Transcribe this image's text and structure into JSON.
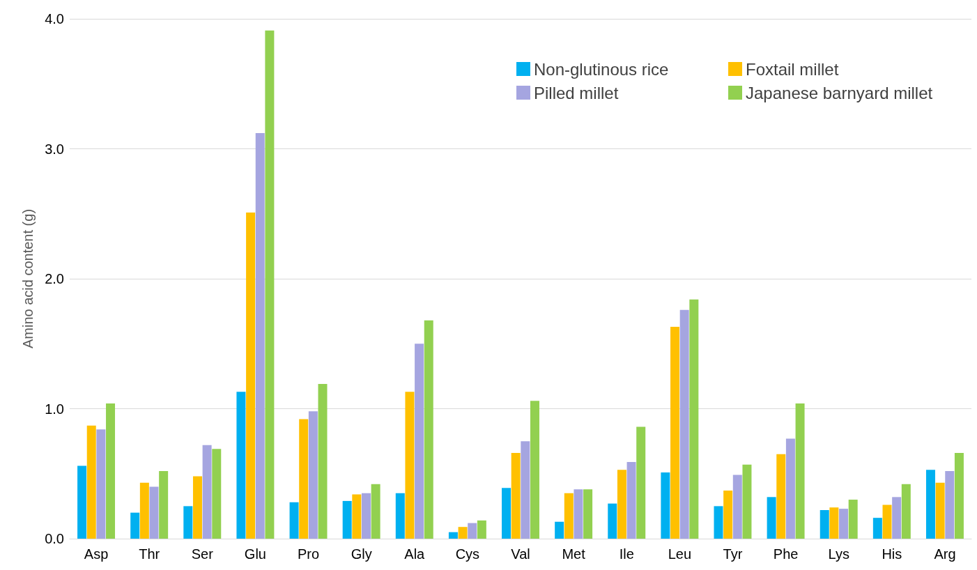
{
  "chart_data": {
    "type": "bar",
    "ylabel": "Amino acid content (g)",
    "categories": [
      "Asp",
      "Thr",
      "Ser",
      "Glu",
      "Pro",
      "Gly",
      "Ala",
      "Cys",
      "Val",
      "Met",
      "Ile",
      "Leu",
      "Tyr",
      "Phe",
      "Lys",
      "His",
      "Arg"
    ],
    "series": [
      {
        "name": "Non-glutinous rice",
        "color": "#00b0f0",
        "values": [
          0.56,
          0.2,
          0.25,
          1.13,
          0.28,
          0.29,
          0.35,
          0.05,
          0.39,
          0.13,
          0.27,
          0.51,
          0.25,
          0.32,
          0.22,
          0.16,
          0.53
        ]
      },
      {
        "name": "Foxtail millet",
        "color": "#ffc000",
        "values": [
          0.87,
          0.43,
          0.48,
          2.51,
          0.92,
          0.34,
          1.13,
          0.09,
          0.66,
          0.35,
          0.53,
          1.63,
          0.37,
          0.65,
          0.24,
          0.26,
          0.43
        ]
      },
      {
        "name": "Pilled millet",
        "color": "#a5a5e0",
        "values": [
          0.84,
          0.4,
          0.72,
          3.12,
          0.98,
          0.35,
          1.5,
          0.12,
          0.75,
          0.38,
          0.59,
          1.76,
          0.49,
          0.77,
          0.23,
          0.32,
          0.52
        ]
      },
      {
        "name": "Japanese barnyard millet",
        "color": "#92d050",
        "values": [
          1.04,
          0.52,
          0.69,
          3.91,
          1.19,
          0.42,
          1.68,
          0.14,
          1.06,
          0.38,
          0.86,
          1.84,
          0.57,
          1.04,
          0.3,
          0.42,
          0.66
        ]
      }
    ],
    "ylim": [
      0,
      4
    ],
    "yticks": [
      {
        "value": 0,
        "label": "0.0"
      },
      {
        "value": 1,
        "label": "1.0"
      },
      {
        "value": 2,
        "label": "2.0"
      },
      {
        "value": 3,
        "label": "3.0"
      },
      {
        "value": 4,
        "label": "4.0"
      }
    ],
    "grid": "y",
    "legend": "top right"
  }
}
